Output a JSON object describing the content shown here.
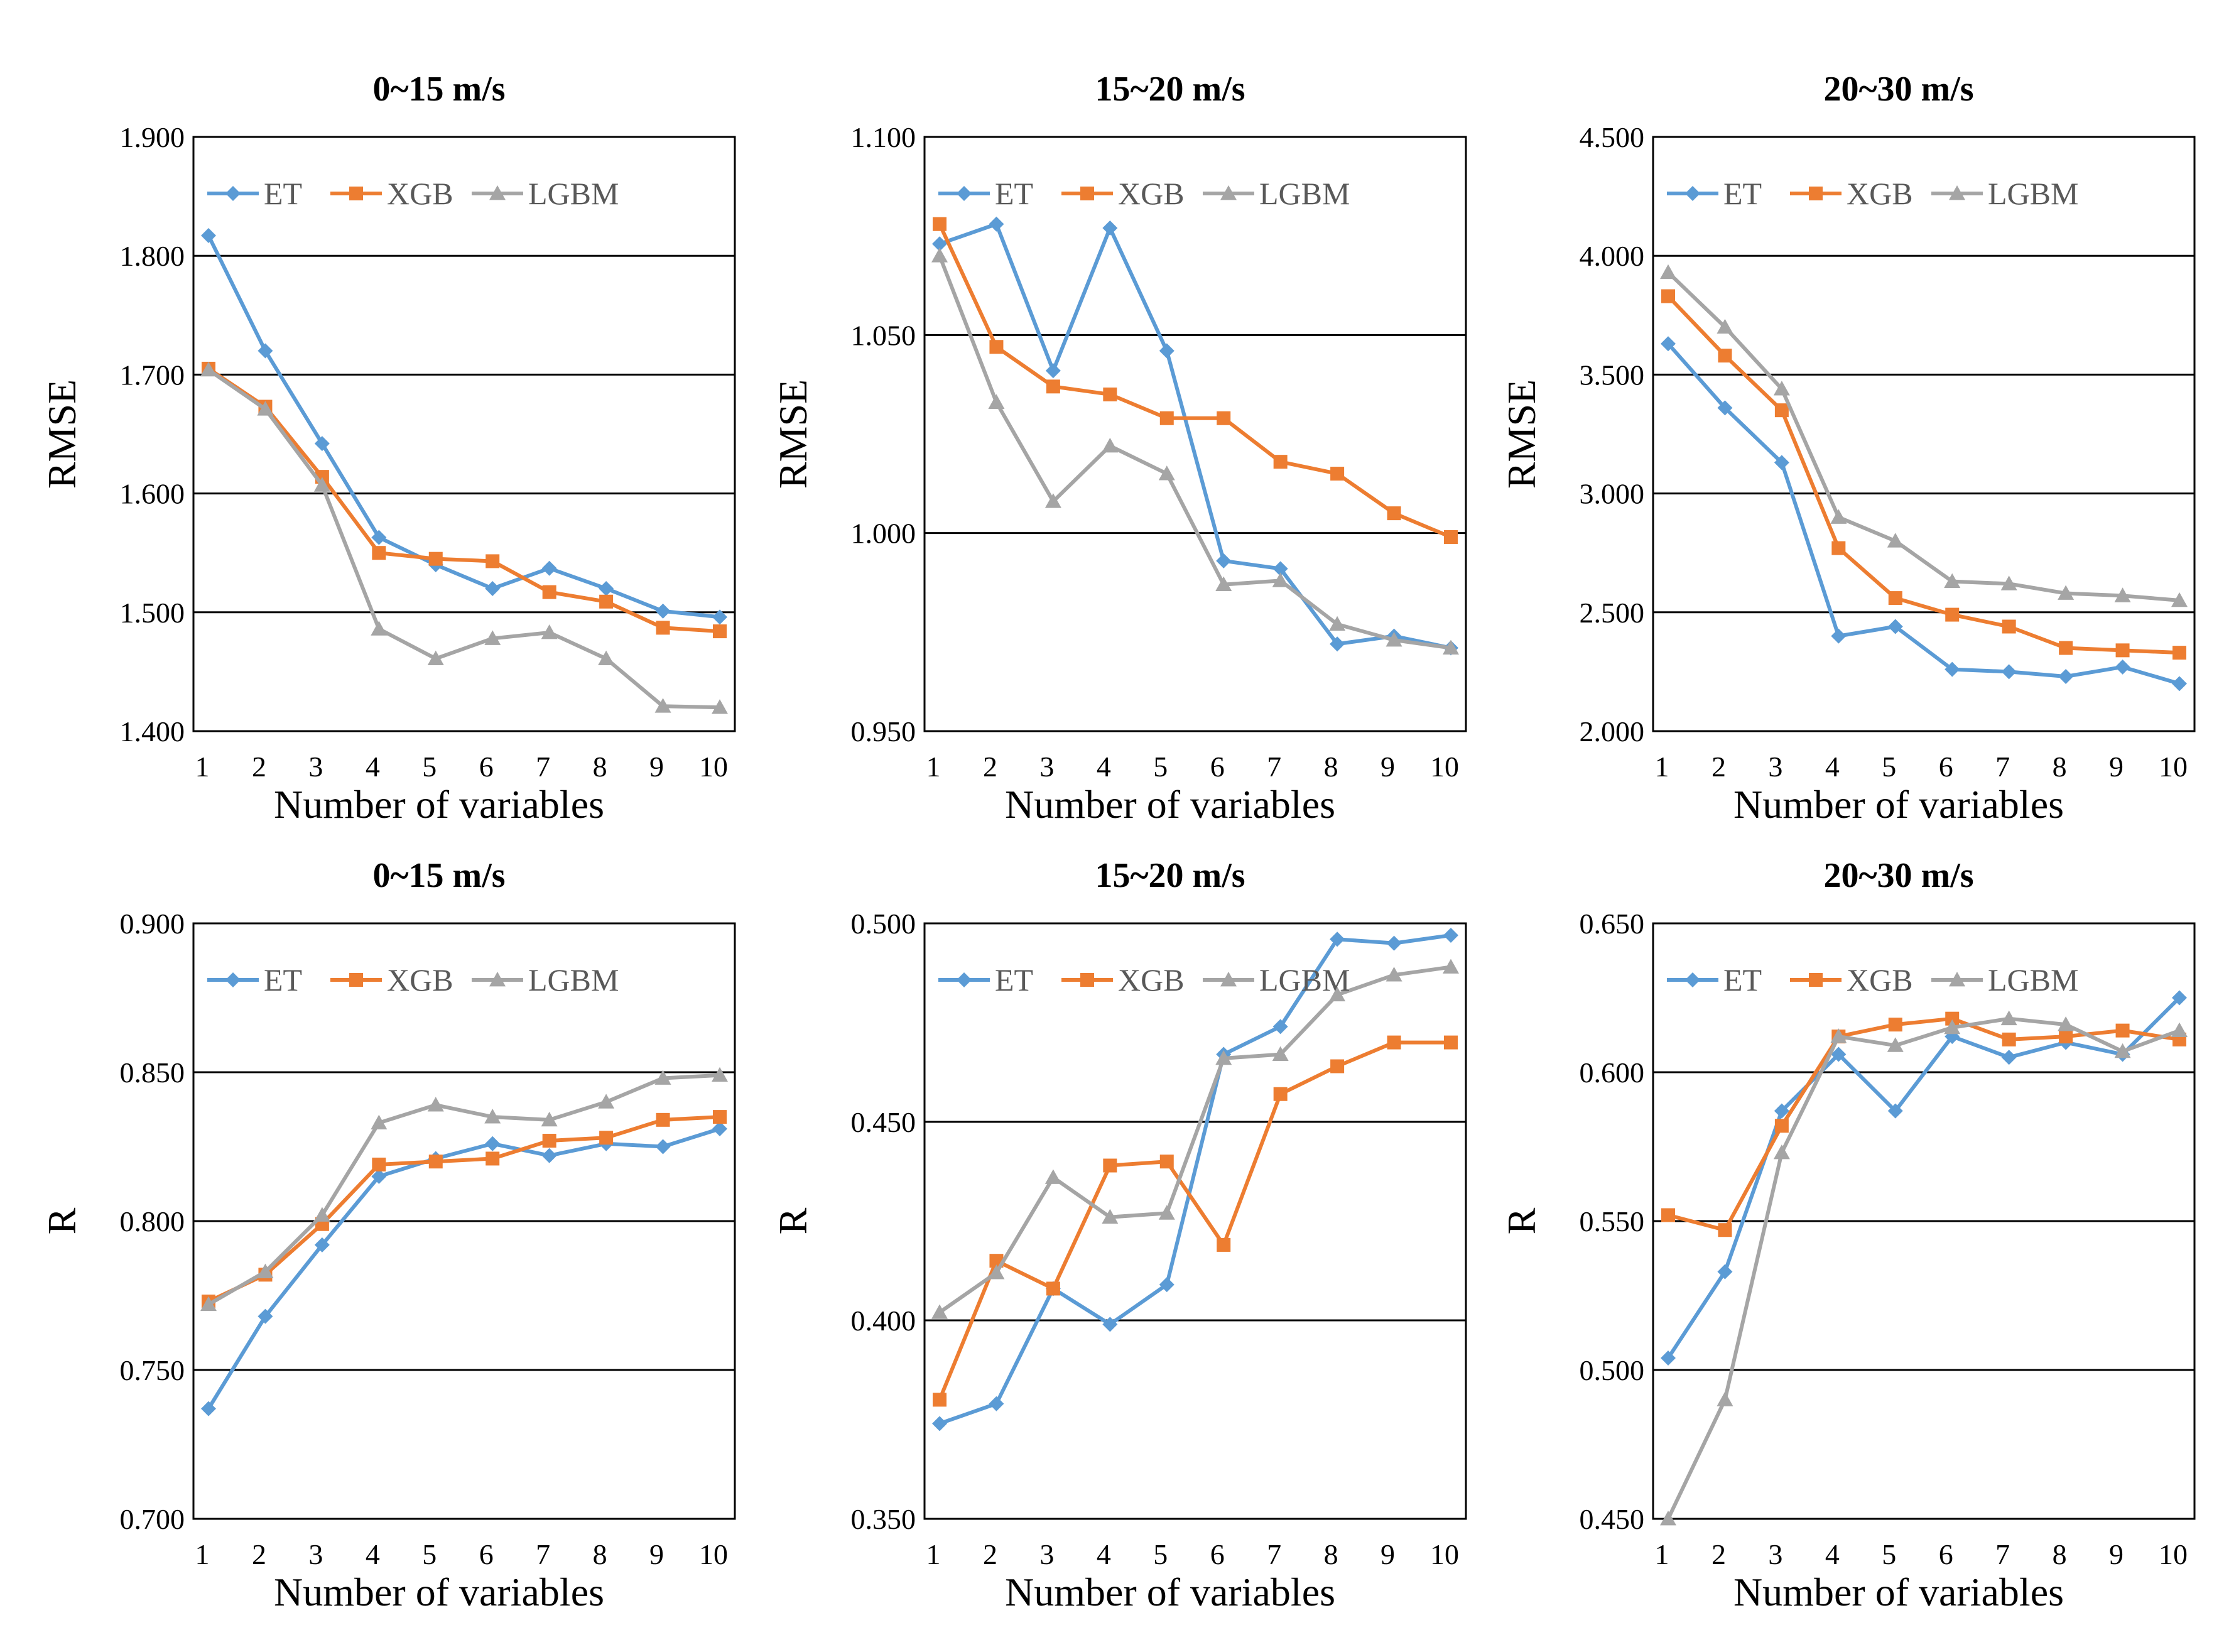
{
  "colors": {
    "ET": "#5B9BD5",
    "XGB": "#ED7D31",
    "LGBM": "#A5A5A5",
    "grid": "#000000",
    "frame": "#000000"
  },
  "legend": [
    "ET",
    "XGB",
    "LGBM"
  ],
  "chart_data": [
    {
      "type": "line",
      "title": "0~15 m/s",
      "xlabel": "Number of variables",
      "ylabel": "RMSE",
      "x": [
        1,
        2,
        3,
        4,
        5,
        6,
        7,
        8,
        9,
        10
      ],
      "ylim": [
        1.4,
        1.9
      ],
      "yticks": [
        1.4,
        1.5,
        1.6,
        1.7,
        1.8,
        1.9
      ],
      "ytick_labels": [
        "1.400",
        "1.500",
        "1.600",
        "1.700",
        "1.800",
        "1.900"
      ],
      "series": [
        {
          "name": "ET",
          "marker": "diamond",
          "values": [
            1.817,
            1.72,
            1.642,
            1.563,
            1.54,
            1.52,
            1.537,
            1.52,
            1.501,
            1.496
          ]
        },
        {
          "name": "XGB",
          "marker": "square",
          "values": [
            1.705,
            1.673,
            1.614,
            1.55,
            1.545,
            1.543,
            1.517,
            1.509,
            1.487,
            1.484
          ]
        },
        {
          "name": "LGBM",
          "marker": "triangle",
          "values": [
            1.704,
            1.671,
            1.607,
            1.486,
            1.461,
            1.478,
            1.483,
            1.461,
            1.421,
            1.42
          ]
        }
      ]
    },
    {
      "type": "line",
      "title": "15~20 m/s",
      "xlabel": "Number of variables",
      "ylabel": "RMSE",
      "x": [
        1,
        2,
        3,
        4,
        5,
        6,
        7,
        8,
        9,
        10
      ],
      "ylim": [
        0.95,
        1.1
      ],
      "yticks": [
        0.95,
        1.0,
        1.05,
        1.1
      ],
      "ytick_labels": [
        "0.950",
        "1.000",
        "1.050",
        "1.100"
      ],
      "series": [
        {
          "name": "ET",
          "marker": "diamond",
          "values": [
            1.073,
            1.078,
            1.041,
            1.077,
            1.046,
            0.993,
            0.991,
            0.972,
            0.974,
            0.971
          ]
        },
        {
          "name": "XGB",
          "marker": "square",
          "values": [
            1.078,
            1.047,
            1.037,
            1.035,
            1.029,
            1.029,
            1.018,
            1.015,
            1.005,
            0.999
          ]
        },
        {
          "name": "LGBM",
          "marker": "triangle",
          "values": [
            1.07,
            1.033,
            1.008,
            1.022,
            1.015,
            0.987,
            0.988,
            0.977,
            0.973,
            0.971
          ]
        }
      ]
    },
    {
      "type": "line",
      "title": "20~30 m/s",
      "xlabel": "Number of variables",
      "ylabel": "RMSE",
      "x": [
        1,
        2,
        3,
        4,
        5,
        6,
        7,
        8,
        9,
        10
      ],
      "ylim": [
        2.0,
        4.5
      ],
      "yticks": [
        2.0,
        2.5,
        3.0,
        3.5,
        4.0,
        4.5
      ],
      "ytick_labels": [
        "2.000",
        "2.500",
        "3.000",
        "3.500",
        "4.000",
        "4.500"
      ],
      "series": [
        {
          "name": "ET",
          "marker": "diamond",
          "values": [
            3.63,
            3.36,
            3.13,
            2.4,
            2.44,
            2.26,
            2.25,
            2.23,
            2.27,
            2.2
          ]
        },
        {
          "name": "XGB",
          "marker": "square",
          "values": [
            3.83,
            3.58,
            3.35,
            2.77,
            2.56,
            2.49,
            2.44,
            2.35,
            2.34,
            2.33
          ]
        },
        {
          "name": "LGBM",
          "marker": "triangle",
          "values": [
            3.93,
            3.7,
            3.44,
            2.9,
            2.8,
            2.63,
            2.62,
            2.58,
            2.57,
            2.55
          ]
        }
      ]
    },
    {
      "type": "line",
      "title": "0~15 m/s",
      "xlabel": "Number of variables",
      "ylabel": "R",
      "x": [
        1,
        2,
        3,
        4,
        5,
        6,
        7,
        8,
        9,
        10
      ],
      "ylim": [
        0.7,
        0.9
      ],
      "yticks": [
        0.7,
        0.75,
        0.8,
        0.85,
        0.9
      ],
      "ytick_labels": [
        "0.700",
        "0.750",
        "0.800",
        "0.850",
        "0.900"
      ],
      "series": [
        {
          "name": "ET",
          "marker": "diamond",
          "values": [
            0.737,
            0.768,
            0.792,
            0.815,
            0.821,
            0.826,
            0.822,
            0.826,
            0.825,
            0.831
          ]
        },
        {
          "name": "XGB",
          "marker": "square",
          "values": [
            0.773,
            0.782,
            0.799,
            0.819,
            0.82,
            0.821,
            0.827,
            0.828,
            0.834,
            0.835
          ]
        },
        {
          "name": "LGBM",
          "marker": "triangle",
          "values": [
            0.772,
            0.783,
            0.802,
            0.833,
            0.839,
            0.835,
            0.834,
            0.84,
            0.848,
            0.849
          ]
        }
      ]
    },
    {
      "type": "line",
      "title": "15~20 m/s",
      "xlabel": "Number of variables",
      "ylabel": "R",
      "x": [
        1,
        2,
        3,
        4,
        5,
        6,
        7,
        8,
        9,
        10
      ],
      "ylim": [
        0.35,
        0.5
      ],
      "yticks": [
        0.35,
        0.4,
        0.45,
        0.5
      ],
      "ytick_labels": [
        "0.350",
        "0.400",
        "0.450",
        "0.500"
      ],
      "series": [
        {
          "name": "ET",
          "marker": "diamond",
          "values": [
            0.374,
            0.379,
            0.408,
            0.399,
            0.409,
            0.467,
            0.474,
            0.496,
            0.495,
            0.497
          ]
        },
        {
          "name": "XGB",
          "marker": "square",
          "values": [
            0.38,
            0.415,
            0.408,
            0.439,
            0.44,
            0.419,
            0.457,
            0.464,
            0.47,
            0.47
          ]
        },
        {
          "name": "LGBM",
          "marker": "triangle",
          "values": [
            0.402,
            0.412,
            0.436,
            0.426,
            0.427,
            0.466,
            0.467,
            0.482,
            0.487,
            0.489
          ]
        }
      ]
    },
    {
      "type": "line",
      "title": "20~30 m/s",
      "xlabel": "Number of variables",
      "ylabel": "R",
      "x": [
        1,
        2,
        3,
        4,
        5,
        6,
        7,
        8,
        9,
        10
      ],
      "ylim": [
        0.45,
        0.65
      ],
      "yticks": [
        0.45,
        0.5,
        0.55,
        0.6,
        0.65
      ],
      "ytick_labels": [
        "0.450",
        "0.500",
        "0.550",
        "0.600",
        "0.650"
      ],
      "series": [
        {
          "name": "ET",
          "marker": "diamond",
          "values": [
            0.504,
            0.533,
            0.587,
            0.606,
            0.587,
            0.612,
            0.605,
            0.61,
            0.606,
            0.625
          ]
        },
        {
          "name": "XGB",
          "marker": "square",
          "values": [
            0.552,
            0.547,
            0.582,
            0.612,
            0.616,
            0.618,
            0.611,
            0.612,
            0.614,
            0.611
          ]
        },
        {
          "name": "LGBM",
          "marker": "triangle",
          "values": [
            0.45,
            0.49,
            0.573,
            0.612,
            0.609,
            0.615,
            0.618,
            0.616,
            0.607,
            0.614
          ]
        }
      ]
    }
  ]
}
